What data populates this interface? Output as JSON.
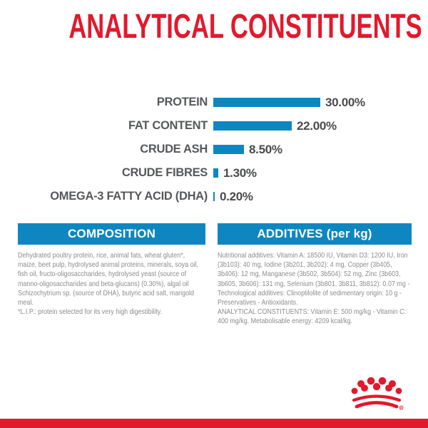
{
  "title": "ANALYTICAL CONSTITUENTS",
  "chart_data": {
    "type": "bar",
    "orientation": "horizontal",
    "title": "ANALYTICAL CONSTITUENTS",
    "categories": [
      "PROTEIN",
      "FAT CONTENT",
      "CRUDE ASH",
      "CRUDE FIBRES",
      "OMEGA-3 FATTY ACID (DHA)"
    ],
    "values": [
      30.0,
      22.0,
      8.5,
      1.3,
      0.2
    ],
    "value_labels": [
      "30.00%",
      "22.00%",
      "8.50%",
      "1.30%",
      "0.20%"
    ],
    "unit": "%",
    "xlim": [
      0,
      30
    ],
    "grid": false,
    "legend": false,
    "bar_color": "#0e87c1"
  },
  "sections": {
    "composition": {
      "header": "COMPOSITION",
      "body": "Dehydrated poultry protein, rice, animal fats, wheat gluten*, maize, beet pulp, hydrolysed animal proteins, minerals, soya oil, fish oil, fructo-oligosaccharides, hydrolysed yeast (source of manno-oligosaccharides and beta-glucans) (0.30%), algal oil Schizochytrium sp. (source of DHA), butyric acid salt, marigold meal.",
      "note": "*L.I.P.: protein selected for its very high digestibility."
    },
    "additives": {
      "header": "ADDITIVES (per kg)",
      "body": "Nutritional additives: Vitamin A: 18500 IU, Vitamin D3: 1200 IU, Iron (3b103): 40 mg, Iodine (3b201, 3b202): 4 mg, Copper (3b405, 3b406): 12 mg, Manganese (3b502, 3b504): 52 mg, Zinc (3b603, 3b605, 3b606): 131 mg, Selenium (3b801, 3b811, 3b812): 0.07 mg - Technological additives: Clinoptilolite of sedimentary origin: 10 g - Preservatives - Antioxidants.",
      "analytical": "ANALYTICAL CONSTITUENTS: Vitamin E: 500 mg/kg - Vitamin C: 400 mg/kg. Metabolisable energy: 4209 kcal/kg."
    }
  },
  "footer": {
    "brand_logo": "royal-canin-crown",
    "registered_mark": "R"
  },
  "colors": {
    "accent_red": "#e2192c",
    "accent_blue": "#0e87c1",
    "chart_label_gray": "#57585a",
    "chart_value_gray": "#4a4b4d",
    "body_text_gray": "#8c8c8c",
    "background": "#ffffff"
  }
}
